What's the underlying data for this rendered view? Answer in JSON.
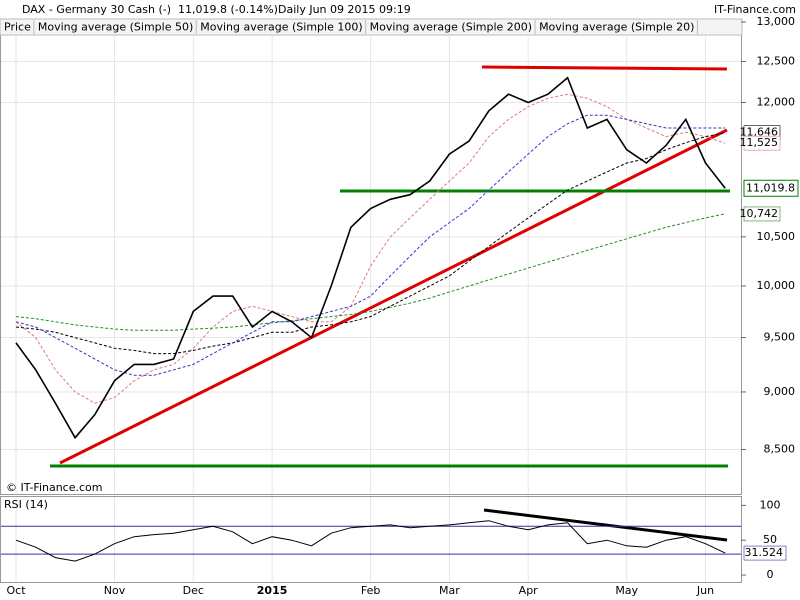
{
  "header": {
    "title": "DAX - Germany 30 Cash (-)",
    "quote": "11,019.8 (-0.14%)",
    "period": "Daily  Jun 09 2015 09:19",
    "brand": "IT-Finance.com",
    "watermark": "© IT-Finance.com"
  },
  "chart_data": [
    {
      "type": "line",
      "log": true,
      "grid": true,
      "categories": [
        "Oct",
        null,
        null,
        null,
        null,
        "Nov",
        null,
        null,
        null,
        "Dec",
        null,
        null,
        null,
        "2015",
        null,
        null,
        null,
        null,
        "Feb",
        null,
        null,
        null,
        "Mar",
        null,
        null,
        null,
        "Apr",
        null,
        null,
        null,
        null,
        "May",
        null,
        null,
        null,
        "Jun",
        null
      ],
      "ylim": [
        8140,
        13000
      ],
      "yticks": [
        {
          "value": 13000,
          "label": "13,000"
        },
        {
          "value": 12500,
          "label": "12,500"
        },
        {
          "value": 12000,
          "label": "12,000"
        },
        {
          "value": 10500,
          "label": "10,500"
        },
        {
          "value": 10000,
          "label": "10,000"
        },
        {
          "value": 9500,
          "label": "9,500"
        },
        {
          "value": 9000,
          "label": "9,000"
        },
        {
          "value": 8500,
          "label": "8,500"
        }
      ],
      "series": [
        {
          "name": "Price",
          "color": "#000000",
          "style": "solid",
          "last_label": "11,019.8",
          "values": [
            9450,
            9200,
            8900,
            8600,
            8800,
            9100,
            9250,
            9250,
            9300,
            9750,
            9900,
            9900,
            9600,
            9750,
            9650,
            9500,
            10000,
            10600,
            10800,
            10900,
            10950,
            11100,
            11400,
            11550,
            11900,
            12100,
            12000,
            12100,
            12300,
            11700,
            11800,
            11450,
            11300,
            11500,
            11800,
            11300,
            11019.8
          ]
        },
        {
          "name": "Moving average (Simple 50)",
          "color": "#3333cc",
          "style": "dashed",
          "values": [
            9650,
            9600,
            9500,
            9400,
            9300,
            9200,
            9150,
            9150,
            9200,
            9250,
            9350,
            9450,
            9550,
            9650,
            9650,
            9700,
            9750,
            9800,
            9900,
            10100,
            10300,
            10500,
            10650,
            10800,
            11000,
            11200,
            11400,
            11600,
            11750,
            11850,
            11850,
            11800,
            11750,
            11700,
            11700,
            11700,
            11700
          ]
        },
        {
          "name": "Moving average (Simple 100)",
          "color": "#000000",
          "style": "dashed",
          "last_label": "11,646",
          "values": [
            9600,
            9580,
            9550,
            9500,
            9450,
            9400,
            9380,
            9350,
            9350,
            9380,
            9420,
            9450,
            9500,
            9550,
            9550,
            9600,
            9620,
            9650,
            9700,
            9800,
            9900,
            10000,
            10100,
            10250,
            10400,
            10550,
            10700,
            10850,
            11000,
            11100,
            11200,
            11300,
            11350,
            11450,
            11530,
            11600,
            11646
          ]
        },
        {
          "name": "Moving average (Simple 200)",
          "color": "#2a8a2a",
          "style": "dashed",
          "last_label": "10,742",
          "values": [
            9700,
            9680,
            9650,
            9620,
            9600,
            9580,
            9570,
            9570,
            9570,
            9580,
            9590,
            9600,
            9620,
            9640,
            9660,
            9680,
            9700,
            9720,
            9750,
            9790,
            9830,
            9880,
            9940,
            10000,
            10060,
            10120,
            10180,
            10240,
            10300,
            10360,
            10420,
            10480,
            10540,
            10600,
            10650,
            10700,
            10742
          ]
        },
        {
          "name": "Moving average (Simple 20)",
          "color": "#e07a7a",
          "style": "dashed",
          "last_label": "11,525",
          "values": [
            9650,
            9500,
            9200,
            9000,
            8900,
            8950,
            9100,
            9200,
            9250,
            9400,
            9600,
            9750,
            9800,
            9750,
            9700,
            9650,
            9650,
            9800,
            10200,
            10500,
            10700,
            10900,
            11100,
            11300,
            11600,
            11800,
            11950,
            12050,
            12100,
            12050,
            11950,
            11800,
            11700,
            11600,
            11650,
            11600,
            11525
          ]
        }
      ]
    },
    {
      "type": "line",
      "title": "RSI (14)",
      "ylim": [
        -10,
        112
      ],
      "yticks": [
        100,
        50,
        0
      ],
      "levels": [
        70,
        30
      ],
      "color": "#000000",
      "values": [
        50,
        40,
        25,
        20,
        30,
        45,
        55,
        58,
        60,
        65,
        70,
        62,
        45,
        55,
        50,
        42,
        60,
        68,
        70,
        72,
        68,
        70,
        72,
        75,
        78,
        70,
        65,
        72,
        75,
        45,
        50,
        42,
        40,
        50,
        55,
        45,
        31.524
      ]
    }
  ]
}
